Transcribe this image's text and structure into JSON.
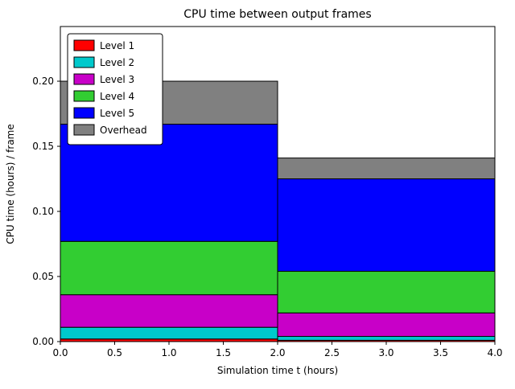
{
  "chart_data": {
    "type": "bar",
    "stacked": true,
    "title": "CPU time between output frames",
    "xlabel": "Simulation time t (hours)",
    "ylabel": "CPU time (hours) / frame",
    "xlim": [
      0,
      4
    ],
    "ylim": [
      0,
      0.242
    ],
    "xticks": [
      0.0,
      0.5,
      1.0,
      1.5,
      2.0,
      2.5,
      3.0,
      3.5,
      4.0
    ],
    "xticklabels": [
      "0.0",
      "0.5",
      "1.0",
      "1.5",
      "2.0",
      "2.5",
      "3.0",
      "3.5",
      "4.0"
    ],
    "yticks": [
      0.0,
      0.05,
      0.1,
      0.15,
      0.2
    ],
    "yticklabels": [
      "0.00",
      "0.05",
      "0.10",
      "0.15",
      "0.20"
    ],
    "grid": false,
    "bars": [
      {
        "x_start": 0.0,
        "x_end": 2.0
      },
      {
        "x_start": 2.0,
        "x_end": 4.0
      }
    ],
    "series": [
      {
        "name": "Level 1",
        "color": "#ff0000",
        "values": [
          0.002,
          0.001
        ]
      },
      {
        "name": "Level 2",
        "color": "#00c9cc",
        "values": [
          0.009,
          0.003
        ]
      },
      {
        "name": "Level 3",
        "color": "#c800c8",
        "values": [
          0.025,
          0.018
        ]
      },
      {
        "name": "Level 4",
        "color": "#32cd32",
        "values": [
          0.041,
          0.032
        ]
      },
      {
        "name": "Level 5",
        "color": "#0000ff",
        "values": [
          0.09,
          0.071
        ]
      },
      {
        "name": "Overhead",
        "color": "#808080",
        "values": [
          0.033,
          0.016
        ]
      }
    ],
    "bar_totals": [
      0.2,
      0.141
    ],
    "edge_color": "#000000",
    "legend": {
      "position": "upper left",
      "entries": [
        "Level 1",
        "Level 2",
        "Level 3",
        "Level 4",
        "Level 5",
        "Overhead"
      ]
    }
  }
}
